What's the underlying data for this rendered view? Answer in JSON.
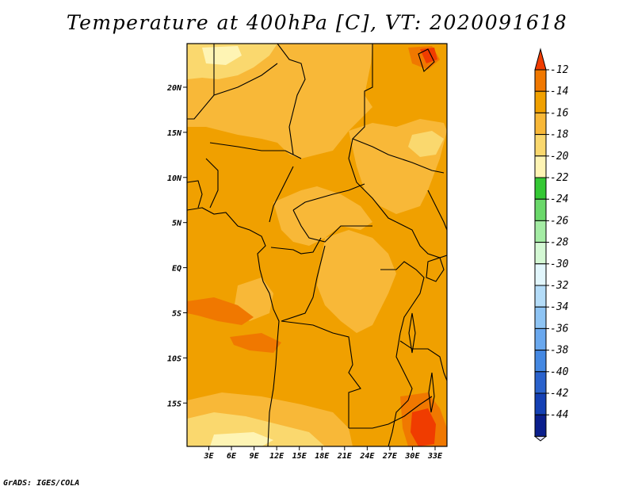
{
  "title": "Temperature at 400hPa [C], VT: 2020091618",
  "credit": "GrADS: IGES/COLA",
  "map": {
    "variable": "Temperature",
    "level": "400hPa",
    "units": "C",
    "valid_time": "2020091618",
    "lat_labels": [
      "20N",
      "15N",
      "10N",
      "5N",
      "EQ",
      "5S",
      "10S",
      "15S"
    ],
    "lon_labels": [
      "3E",
      "6E",
      "9E",
      "12E",
      "15E",
      "18E",
      "21E",
      "24E",
      "27E",
      "30E",
      "33E"
    ]
  },
  "colorbar": {
    "levels": [
      "-12",
      "-14",
      "-16",
      "-18",
      "-20",
      "-22",
      "-24",
      "-26",
      "-28",
      "-30",
      "-32",
      "-34",
      "-36",
      "-38",
      "-40",
      "-42",
      "-44"
    ],
    "colors": [
      "#f03c00",
      "#f07800",
      "#f0a000",
      "#f8b838",
      "#fad86e",
      "#fef4b4",
      "#34c834",
      "#6ad86a",
      "#a4eca4",
      "#d4f8d4",
      "#e2f6fc",
      "#b4dcf8",
      "#8ec4f4",
      "#6aa8ee",
      "#4488e2",
      "#2a62cc",
      "#1440b4",
      "#0a1e8c",
      "#e0e0f8"
    ]
  },
  "chart_data": {
    "type": "heatmap",
    "title": "Temperature at 400hPa [C], VT: 2020091618",
    "x": [
      "3E",
      "6E",
      "9E",
      "12E",
      "15E",
      "18E",
      "21E",
      "24E",
      "27E",
      "30E",
      "33E"
    ],
    "y": [
      "20N",
      "15N",
      "10N",
      "5N",
      "EQ",
      "5S",
      "10S",
      "15S"
    ],
    "xlim": [
      0.5,
      34.5
    ],
    "ylim": [
      -19.3,
      24.9
    ],
    "legend": "colorbar right, -44 to -12 C",
    "value_range": [
      -19,
      -12
    ]
  }
}
